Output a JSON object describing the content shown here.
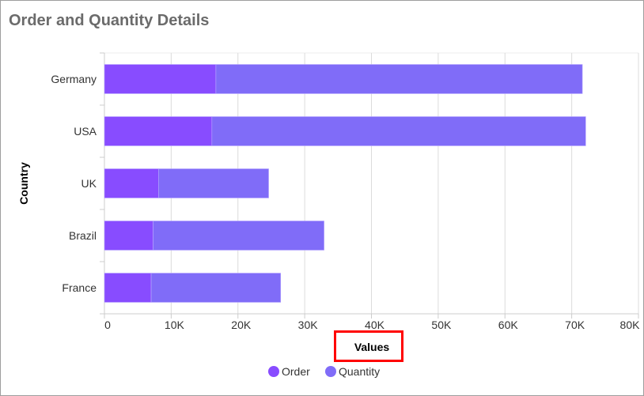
{
  "chart_data": {
    "type": "bar",
    "orientation": "horizontal",
    "stacked": true,
    "title": "Order and Quantity Details",
    "xlabel": "Values",
    "ylabel": "Country",
    "categories": [
      "Germany",
      "USA",
      "UK",
      "Brazil",
      "France"
    ],
    "series": [
      {
        "name": "Order",
        "color": "#884cff",
        "values": [
          16700,
          16100,
          8100,
          7300,
          7000
        ]
      },
      {
        "name": "Quantity",
        "color": "#806cf8",
        "values": [
          54900,
          56000,
          16500,
          25600,
          19400
        ]
      }
    ],
    "xlim": [
      0,
      80000
    ],
    "xticks": [
      "0",
      "10K",
      "20K",
      "30K",
      "40K",
      "50K",
      "60K",
      "70K",
      "80K"
    ],
    "grid": true,
    "legend": "bottom",
    "highlight_color": "#ff0000"
  }
}
